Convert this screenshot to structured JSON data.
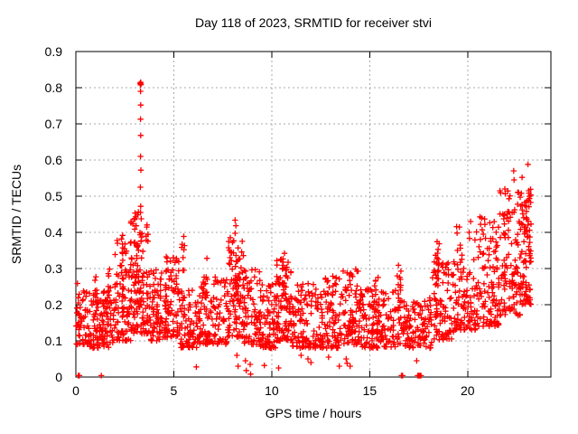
{
  "page": {
    "background": "#ffffff"
  },
  "chart_data": {
    "type": "scatter",
    "title": "Day 118 of 2023, SRMTID for receiver stvi",
    "xlabel": "GPS time / hours",
    "ylabel": "SRMTID / TECUs",
    "xlim": [
      0,
      24.25
    ],
    "ylim": [
      0,
      0.9
    ],
    "x_tick_values": [
      0,
      5,
      10,
      15,
      20
    ],
    "x_tick_labels": [
      "0",
      "5",
      "10",
      "15",
      "20"
    ],
    "y_tick_values": [
      0,
      0.1,
      0.2,
      0.3,
      0.4,
      0.5,
      0.6,
      0.7,
      0.8,
      0.9
    ],
    "y_tick_labels": [
      "0",
      "0.1",
      "0.2",
      "0.3",
      "0.4",
      "0.5",
      "0.6",
      "0.7",
      "0.8",
      "0.9"
    ],
    "grid": "dotted",
    "legend": "none",
    "marker": {
      "shape": "plus",
      "color": "#ff0000"
    },
    "colors": {
      "marker": "#ff0000",
      "grid": "#a8a8a8",
      "axis": "#000000",
      "background": "#ffffff"
    },
    "cluster_fields": [
      "x_start",
      "x_end",
      "count",
      "y_min",
      "y_max",
      "skew"
    ],
    "clusters": [
      [
        0.0,
        0.7,
        55,
        0.09,
        0.26,
        1.6
      ],
      [
        0.7,
        2.0,
        110,
        0.08,
        0.24,
        1.5
      ],
      [
        0.95,
        1.1,
        10,
        0.12,
        0.3,
        1.2
      ],
      [
        1.6,
        1.8,
        12,
        0.12,
        0.32,
        1.2
      ],
      [
        2.0,
        2.8,
        85,
        0.1,
        0.38,
        1.7
      ],
      [
        2.25,
        2.45,
        14,
        0.15,
        0.43,
        1.1
      ],
      [
        2.8,
        3.7,
        120,
        0.12,
        0.45,
        1.6
      ],
      [
        3.0,
        3.2,
        18,
        0.2,
        0.47,
        1.0
      ],
      [
        3.7,
        4.4,
        70,
        0.1,
        0.3,
        1.6
      ],
      [
        4.4,
        5.3,
        85,
        0.11,
        0.33,
        1.7
      ],
      [
        4.55,
        4.7,
        10,
        0.15,
        0.35,
        1.1
      ],
      [
        5.3,
        6.4,
        85,
        0.08,
        0.24,
        1.5
      ],
      [
        5.4,
        5.55,
        11,
        0.18,
        0.42,
        1.1
      ],
      [
        6.4,
        7.7,
        105,
        0.09,
        0.28,
        1.6
      ],
      [
        6.55,
        6.7,
        8,
        0.15,
        0.33,
        1.1
      ],
      [
        7.7,
        8.6,
        90,
        0.11,
        0.4,
        1.5
      ],
      [
        8.1,
        8.35,
        18,
        0.2,
        0.44,
        1.0
      ],
      [
        8.6,
        9.4,
        70,
        0.09,
        0.3,
        1.7
      ],
      [
        9.4,
        10.2,
        75,
        0.08,
        0.26,
        1.6
      ],
      [
        10.2,
        11.0,
        90,
        0.1,
        0.33,
        1.7
      ],
      [
        10.5,
        10.75,
        16,
        0.18,
        0.35,
        1.0
      ],
      [
        11.0,
        12.5,
        120,
        0.08,
        0.26,
        1.5
      ],
      [
        12.5,
        13.5,
        90,
        0.08,
        0.28,
        1.6
      ],
      [
        13.5,
        14.5,
        90,
        0.09,
        0.31,
        1.7
      ],
      [
        14.5,
        16.3,
        140,
        0.08,
        0.25,
        1.5
      ],
      [
        15.25,
        15.45,
        10,
        0.12,
        0.3,
        1.2
      ],
      [
        16.3,
        16.8,
        30,
        0.09,
        0.3,
        1.4
      ],
      [
        16.45,
        16.6,
        10,
        0.12,
        0.33,
        1.1
      ],
      [
        16.8,
        18.2,
        105,
        0.08,
        0.22,
        1.5
      ],
      [
        18.2,
        19.3,
        90,
        0.1,
        0.32,
        1.6
      ],
      [
        18.35,
        18.55,
        12,
        0.15,
        0.4,
        1.1
      ],
      [
        19.3,
        20.6,
        110,
        0.13,
        0.42,
        1.6
      ],
      [
        20.6,
        21.6,
        100,
        0.14,
        0.45,
        1.5
      ],
      [
        21.6,
        22.7,
        110,
        0.17,
        0.52,
        1.4
      ],
      [
        22.7,
        23.25,
        90,
        0.2,
        0.52,
        1.3
      ]
    ],
    "outliers": [
      [
        3.28,
        0.812
      ],
      [
        3.3,
        0.808
      ],
      [
        3.33,
        0.81
      ],
      [
        3.31,
        0.815
      ],
      [
        3.3,
        0.79
      ],
      [
        3.31,
        0.752
      ],
      [
        3.3,
        0.713
      ],
      [
        3.31,
        0.668
      ],
      [
        3.3,
        0.61
      ],
      [
        3.32,
        0.572
      ],
      [
        3.29,
        0.525
      ],
      [
        3.31,
        0.472
      ],
      [
        3.3,
        0.455
      ],
      [
        0.12,
        0.004
      ],
      [
        0.15,
        0.004
      ],
      [
        0.18,
        0.004
      ],
      [
        1.3,
        0.004
      ],
      [
        16.62,
        0.004
      ],
      [
        16.68,
        0.004
      ],
      [
        17.45,
        0.004
      ],
      [
        17.48,
        0.004
      ],
      [
        17.5,
        0.004
      ],
      [
        17.53,
        0.004
      ],
      [
        17.56,
        0.004
      ],
      [
        17.62,
        0.004
      ],
      [
        6.15,
        0.028
      ],
      [
        8.22,
        0.06
      ],
      [
        8.28,
        0.03
      ],
      [
        8.66,
        0.045
      ],
      [
        8.7,
        0.018
      ],
      [
        8.92,
        0.008
      ],
      [
        8.9,
        0.035
      ],
      [
        9.62,
        0.032
      ],
      [
        10.35,
        0.025
      ],
      [
        11.5,
        0.06
      ],
      [
        11.85,
        0.05
      ],
      [
        12.0,
        0.04
      ],
      [
        12.9,
        0.055
      ],
      [
        13.45,
        0.03
      ],
      [
        13.8,
        0.05
      ],
      [
        13.85,
        0.038
      ],
      [
        14.0,
        0.03
      ],
      [
        17.4,
        0.045
      ],
      [
        22.35,
        0.57
      ],
      [
        22.37,
        0.545
      ],
      [
        22.78,
        0.552
      ],
      [
        23.08,
        0.588
      ],
      [
        23.12,
        0.515
      ],
      [
        21.9,
        0.52
      ],
      [
        21.65,
        0.515
      ],
      [
        22.6,
        0.51
      ],
      [
        20.15,
        0.43
      ]
    ]
  }
}
